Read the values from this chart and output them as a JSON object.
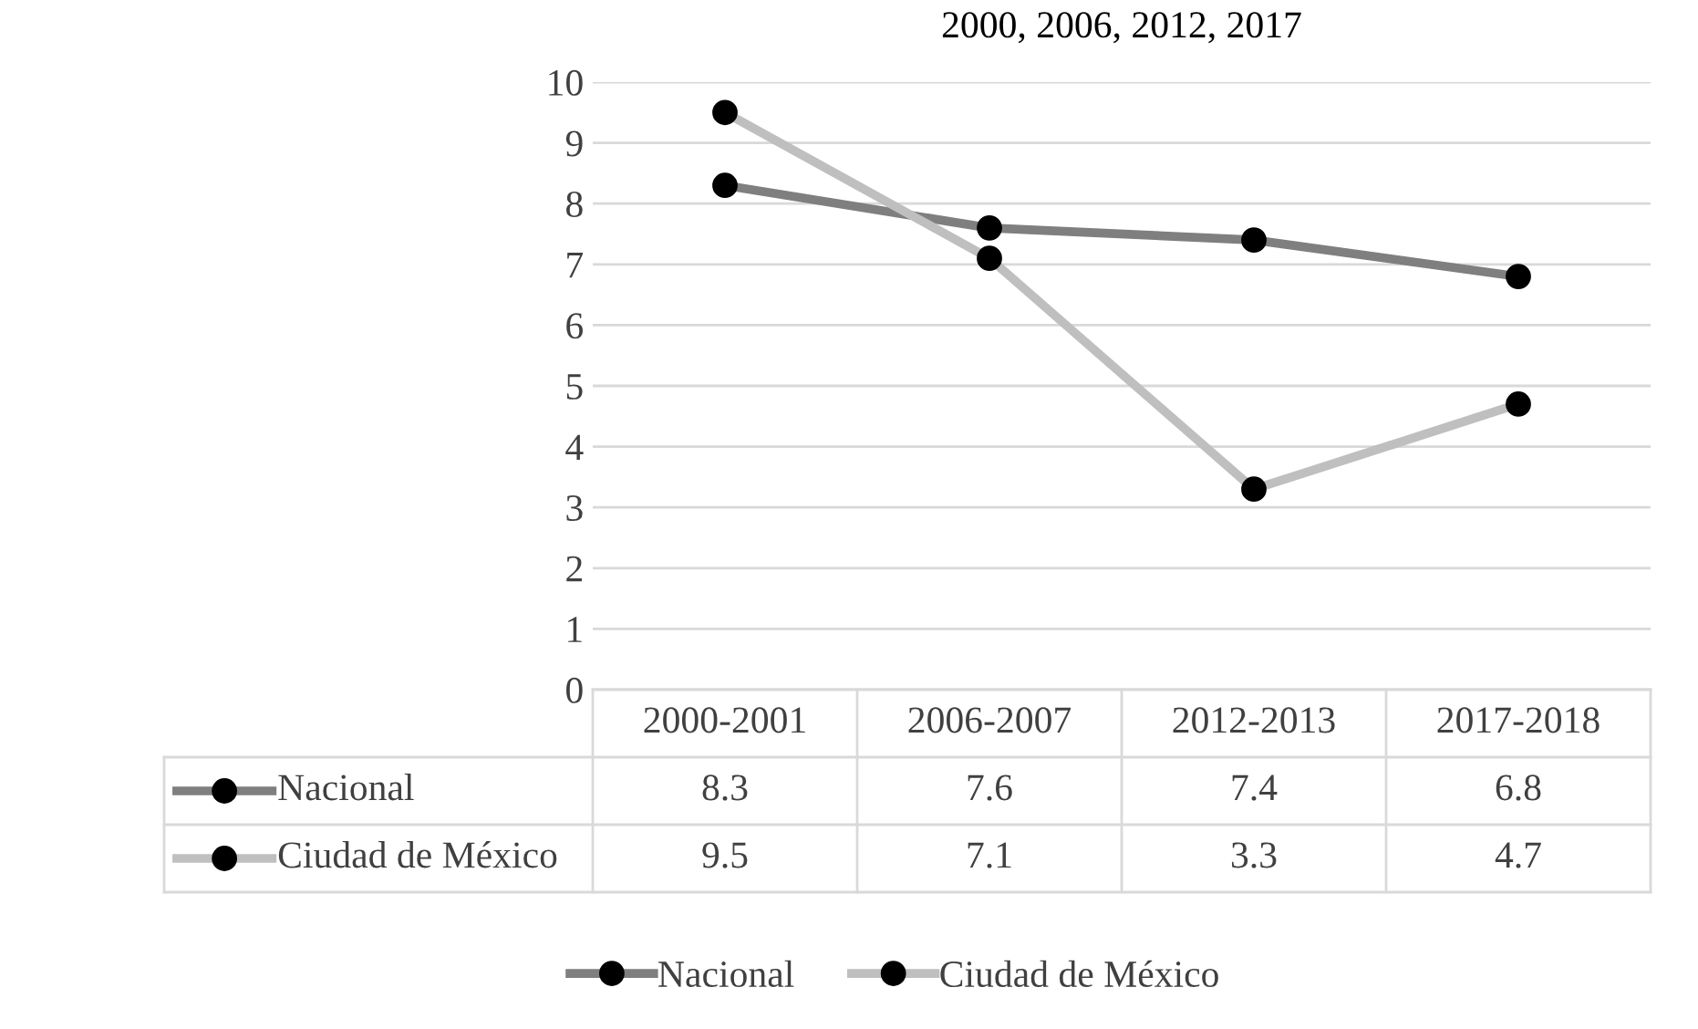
{
  "chart_data": {
    "type": "line",
    "title": "2000, 2006, 2012, 2017",
    "categories": [
      "2000-2001",
      "2006-2007",
      "2012-2013",
      "2017-2018"
    ],
    "series": [
      {
        "name": "Nacional",
        "color": "#7f7f7f",
        "values": [
          8.3,
          7.6,
          7.4,
          6.8
        ]
      },
      {
        "name": "Ciudad de México",
        "color": "#bfbfbf",
        "values": [
          9.5,
          7.1,
          3.3,
          4.7
        ]
      }
    ],
    "ylim": [
      0,
      10
    ],
    "yticks": [
      0,
      1,
      2,
      3,
      4,
      5,
      6,
      7,
      8,
      9,
      10
    ],
    "grid": "y",
    "legend": "bottom",
    "marker": "circle",
    "line_style": "solid",
    "data_labels": true,
    "tick_labels": "y"
  }
}
